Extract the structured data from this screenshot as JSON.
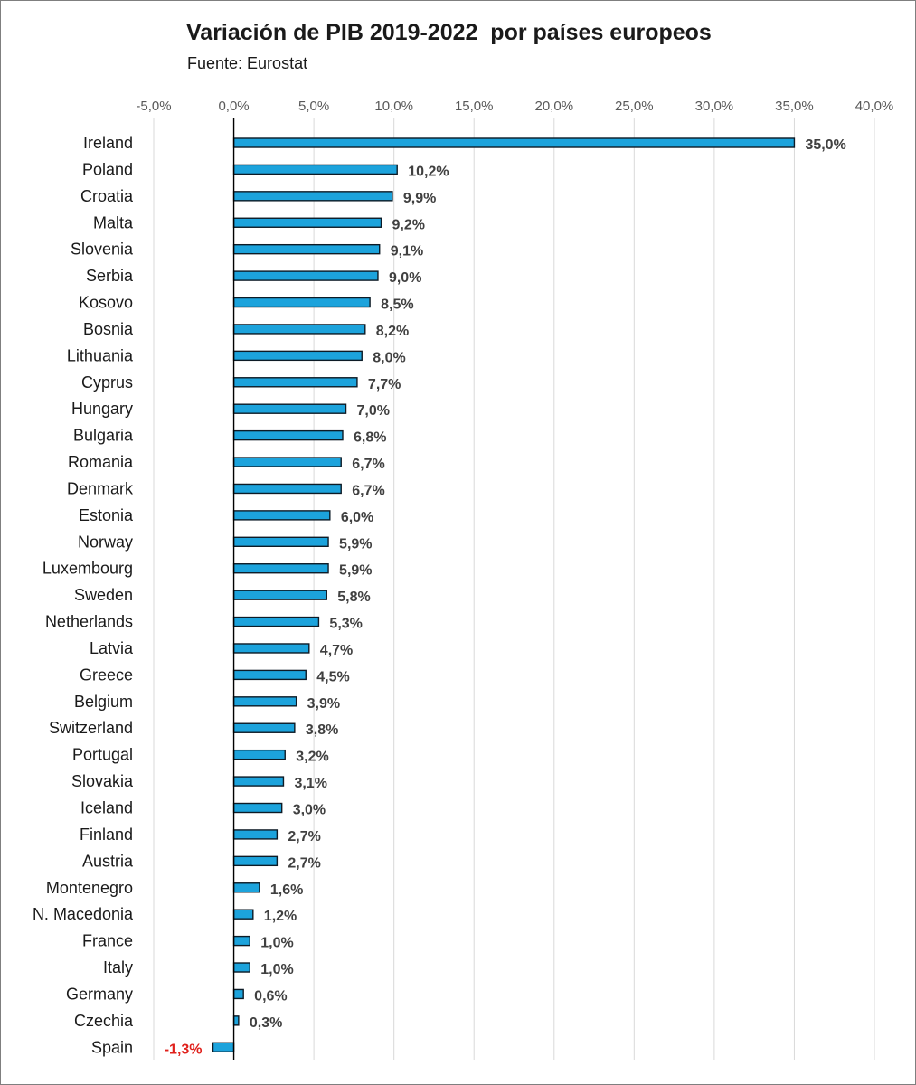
{
  "title": "Variación de PIB 2019-2022  por países europeos",
  "subtitle": "Fuente: Eurostat",
  "colors": {
    "bar_fill": "#1ca3dc",
    "bar_stroke": "#0d1b26",
    "negative_label": "#e0201b",
    "gridline": "#d9d9d9",
    "axis": "#000000"
  },
  "chart_data": {
    "type": "bar",
    "orientation": "horizontal",
    "title": "Variación de PIB 2019-2022  por países europeos",
    "subtitle": "Fuente: Eurostat",
    "xlim": [
      -5,
      40
    ],
    "x_ticks": [
      -5,
      0,
      5,
      10,
      15,
      20,
      25,
      30,
      35,
      40
    ],
    "x_tick_labels": [
      "-5,0%",
      "0,0%",
      "5,0%",
      "10,0%",
      "15,0%",
      "20,0%",
      "25,0%",
      "30,0%",
      "35,0%",
      "40,0%"
    ],
    "x_axis_position": "top",
    "grid": true,
    "legend": "none",
    "categories": [
      "Ireland",
      "Poland",
      "Croatia",
      "Malta",
      "Slovenia",
      "Serbia",
      "Kosovo",
      "Bosnia",
      "Lithuania",
      "Cyprus",
      "Hungary",
      "Bulgaria",
      "Romania",
      "Denmark",
      "Estonia",
      "Norway",
      "Luxembourg",
      "Sweden",
      "Netherlands",
      "Latvia",
      "Greece",
      "Belgium",
      "Switzerland",
      "Portugal",
      "Slovakia",
      "Iceland",
      "Finland",
      "Austria",
      "Montenegro",
      "N. Macedonia",
      "France",
      "Italy",
      "Germany",
      "Czechia",
      "Spain"
    ],
    "values": [
      35.0,
      10.2,
      9.9,
      9.2,
      9.1,
      9.0,
      8.5,
      8.2,
      8.0,
      7.7,
      7.0,
      6.8,
      6.7,
      6.7,
      6.0,
      5.9,
      5.9,
      5.8,
      5.3,
      4.7,
      4.5,
      3.9,
      3.8,
      3.2,
      3.1,
      3.0,
      2.7,
      2.7,
      1.6,
      1.2,
      1.0,
      1.0,
      0.6,
      0.3,
      -1.3
    ],
    "data_labels": [
      "35,0%",
      "10,2%",
      "9,9%",
      "9,2%",
      "9,1%",
      "9,0%",
      "8,5%",
      "8,2%",
      "8,0%",
      "7,7%",
      "7,0%",
      "6,8%",
      "6,7%",
      "6,7%",
      "6,0%",
      "5,9%",
      "5,9%",
      "5,8%",
      "5,3%",
      "4,7%",
      "4,5%",
      "3,9%",
      "3,8%",
      "3,2%",
      "3,1%",
      "3,0%",
      "2,7%",
      "2,7%",
      "1,6%",
      "1,2%",
      "1,0%",
      "1,0%",
      "0,6%",
      "0,3%",
      "-1,3%"
    ]
  }
}
